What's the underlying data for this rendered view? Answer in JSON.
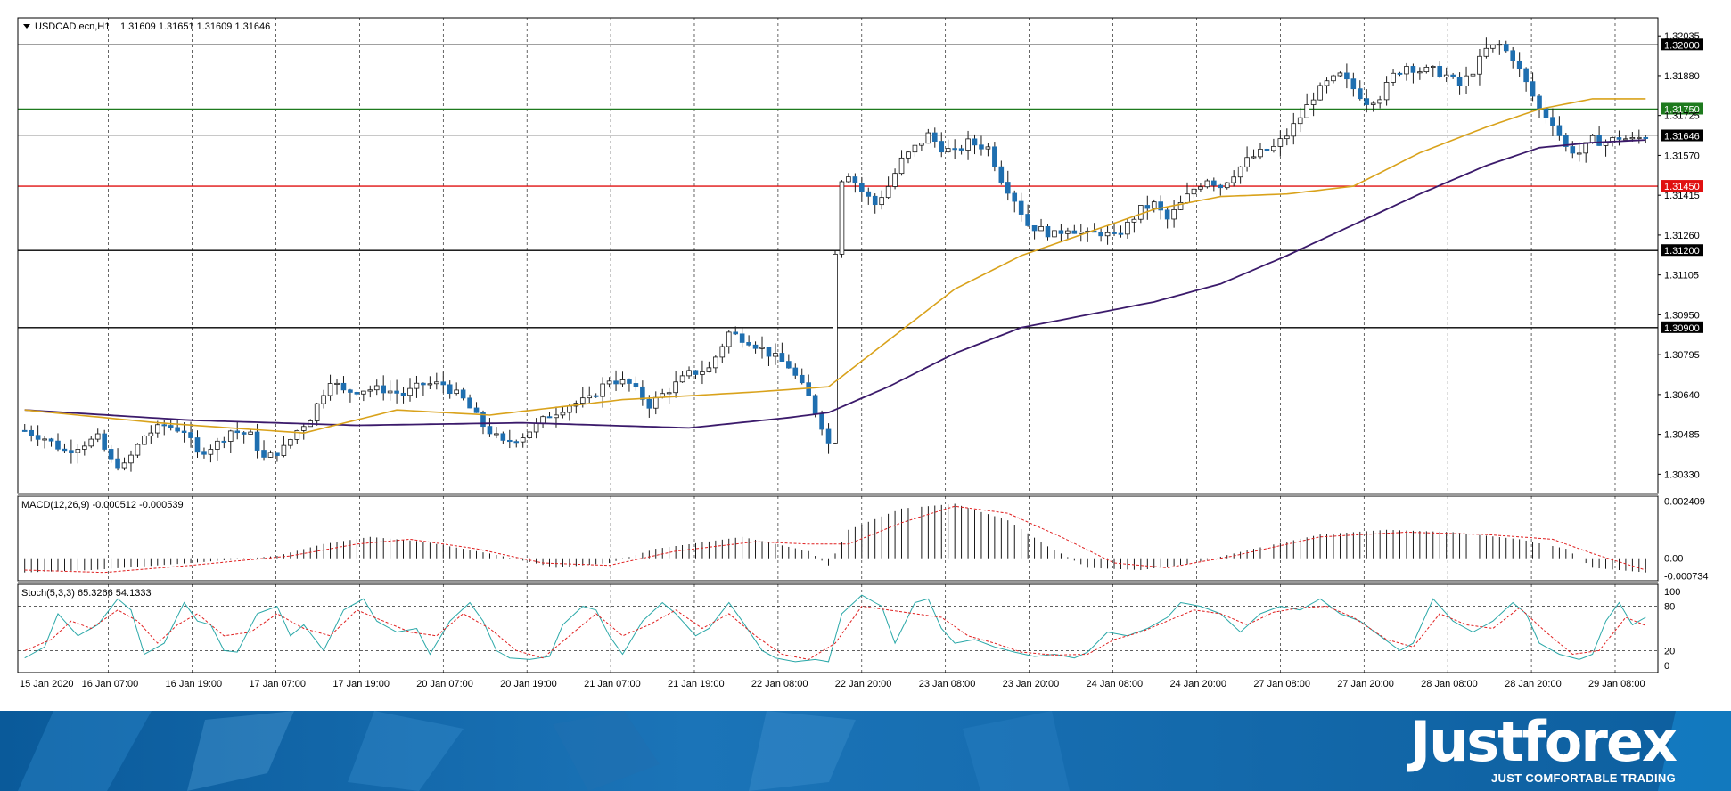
{
  "header": {
    "symbol": "USDCAD.ecn,H1",
    "ohlc": "1.31609 1.31651 1.31609 1.31646"
  },
  "chart_data": {
    "type": "candlestick",
    "ylim": [
      1.30255,
      1.32105
    ],
    "price_ticks": [
      "1.32035",
      "1.31880",
      "1.31725",
      "1.31570",
      "1.31415",
      "1.31260",
      "1.31105",
      "1.30950",
      "1.30795",
      "1.30640",
      "1.30485",
      "1.30330"
    ],
    "horizontal_levels": [
      {
        "label": "1.32000",
        "value": 1.32,
        "color": "#000000",
        "text_color": "#ffffff"
      },
      {
        "label": "1.31750",
        "value": 1.3175,
        "color": "#1e7a1e",
        "text_color": "#ffffff"
      },
      {
        "label": "1.31450",
        "value": 1.3145,
        "color": "#e01010",
        "text_color": "#ffffff"
      },
      {
        "label": "1.31200",
        "value": 1.312,
        "color": "#000000",
        "text_color": "#ffffff"
      },
      {
        "label": "1.30900",
        "value": 1.309,
        "color": "#000000",
        "text_color": "#ffffff"
      }
    ],
    "current_price": {
      "label": "1.31646",
      "value": 1.31646
    },
    "time_labels": [
      "15 Jan 2020",
      "16 Jan 07:00",
      "16 Jan 19:00",
      "17 Jan 07:00",
      "17 Jan 19:00",
      "20 Jan 07:00",
      "20 Jan 19:00",
      "21 Jan 07:00",
      "21 Jan 19:00",
      "22 Jan 08:00",
      "22 Jan 20:00",
      "23 Jan 08:00",
      "23 Jan 20:00",
      "24 Jan 08:00",
      "24 Jan 20:00",
      "27 Jan 08:00",
      "27 Jan 20:00",
      "28 Jan 08:00",
      "28 Jan 20:00",
      "29 Jan 08:00"
    ],
    "bull_color": "#ffffff",
    "bear_color": "#1f6fb0",
    "ma_fast_color": "#d9a21b",
    "ma_slow_color": "#3b1a6b",
    "close_path": [
      [
        0,
        1.305
      ],
      [
        3,
        1.3047
      ],
      [
        6,
        1.3042
      ],
      [
        8,
        1.3044
      ],
      [
        11,
        1.3047
      ],
      [
        13,
        1.3038
      ],
      [
        15,
        1.3036
      ],
      [
        18,
        1.3048
      ],
      [
        21,
        1.3052
      ],
      [
        24,
        1.305
      ],
      [
        26,
        1.3041
      ],
      [
        29,
        1.3045
      ],
      [
        31,
        1.305
      ],
      [
        34,
        1.3048
      ],
      [
        36,
        1.3039
      ],
      [
        39,
        1.3043
      ],
      [
        41,
        1.305
      ],
      [
        43,
        1.3055
      ],
      [
        46,
        1.307
      ],
      [
        48,
        1.3065
      ],
      [
        51,
        1.3066
      ],
      [
        54,
        1.3066
      ],
      [
        57,
        1.3064
      ],
      [
        60,
        1.3068
      ],
      [
        63,
        1.3068
      ],
      [
        66,
        1.3062
      ],
      [
        69,
        1.3052
      ],
      [
        72,
        1.3045
      ],
      [
        75,
        1.3048
      ],
      [
        79,
        1.3056
      ],
      [
        82,
        1.306
      ],
      [
        85,
        1.3062
      ],
      [
        88,
        1.307
      ],
      [
        91,
        1.3068
      ],
      [
        94,
        1.306
      ],
      [
        97,
        1.3066
      ],
      [
        100,
        1.3072
      ],
      [
        103,
        1.3074
      ],
      [
        106,
        1.3088
      ],
      [
        109,
        1.3085
      ],
      [
        112,
        1.308
      ],
      [
        115,
        1.3075
      ],
      [
        118,
        1.3063
      ],
      [
        120,
        1.3052
      ],
      [
        121,
        1.3045
      ],
      [
        122,
        1.312
      ],
      [
        123,
        1.3148
      ],
      [
        124,
        1.315
      ],
      [
        126,
        1.3143
      ],
      [
        128,
        1.3138
      ],
      [
        130,
        1.3145
      ],
      [
        132,
        1.3155
      ],
      [
        134,
        1.316
      ],
      [
        136,
        1.3165
      ],
      [
        138,
        1.316
      ],
      [
        140,
        1.3158
      ],
      [
        142,
        1.3162
      ],
      [
        145,
        1.316
      ],
      [
        147,
        1.3148
      ],
      [
        149,
        1.314
      ],
      [
        151,
        1.313
      ],
      [
        153,
        1.3128
      ],
      [
        155,
        1.3126
      ],
      [
        157,
        1.3129
      ],
      [
        160,
        1.3126
      ],
      [
        162,
        1.3127
      ],
      [
        164,
        1.3125
      ],
      [
        166,
        1.313
      ],
      [
        168,
        1.3136
      ],
      [
        170,
        1.3138
      ],
      [
        172,
        1.3132
      ],
      [
        174,
        1.3138
      ],
      [
        176,
        1.3144
      ],
      [
        178,
        1.3148
      ],
      [
        180,
        1.3145
      ],
      [
        182,
        1.315
      ],
      [
        184,
        1.3155
      ],
      [
        186,
        1.3158
      ],
      [
        188,
        1.316
      ],
      [
        190,
        1.3165
      ],
      [
        192,
        1.3172
      ],
      [
        194,
        1.318
      ],
      [
        196,
        1.3185
      ],
      [
        198,
        1.3188
      ],
      [
        200,
        1.3183
      ],
      [
        202,
        1.3178
      ],
      [
        204,
        1.318
      ],
      [
        206,
        1.3188
      ],
      [
        208,
        1.3192
      ],
      [
        210,
        1.319
      ],
      [
        212,
        1.319
      ],
      [
        214,
        1.3188
      ],
      [
        216,
        1.3184
      ],
      [
        218,
        1.319
      ],
      [
        220,
        1.3198
      ],
      [
        222,
        1.32
      ],
      [
        224,
        1.3195
      ],
      [
        226,
        1.3185
      ],
      [
        228,
        1.3175
      ],
      [
        230,
        1.317
      ],
      [
        232,
        1.316
      ],
      [
        234,
        1.3158
      ],
      [
        236,
        1.3163
      ],
      [
        238,
        1.3162
      ],
      [
        240,
        1.3164
      ],
      [
        242,
        1.3163
      ],
      [
        244,
        1.31646
      ]
    ],
    "ma_fast": [
      [
        0,
        1.3058
      ],
      [
        20,
        1.3053
      ],
      [
        42,
        1.3049
      ],
      [
        56,
        1.3058
      ],
      [
        70,
        1.3056
      ],
      [
        90,
        1.3062
      ],
      [
        110,
        1.3065
      ],
      [
        121,
        1.3067
      ],
      [
        130,
        1.3085
      ],
      [
        140,
        1.3105
      ],
      [
        150,
        1.3118
      ],
      [
        160,
        1.3127
      ],
      [
        170,
        1.3136
      ],
      [
        180,
        1.3141
      ],
      [
        190,
        1.3142
      ],
      [
        200,
        1.3145
      ],
      [
        210,
        1.3158
      ],
      [
        220,
        1.3168
      ],
      [
        228,
        1.3175
      ],
      [
        236,
        1.3179
      ],
      [
        244,
        1.3179
      ]
    ],
    "ma_slow": [
      [
        0,
        1.3058
      ],
      [
        25,
        1.3054
      ],
      [
        50,
        1.3052
      ],
      [
        75,
        1.3053
      ],
      [
        100,
        1.3051
      ],
      [
        115,
        1.3055
      ],
      [
        121,
        1.3057
      ],
      [
        130,
        1.3067
      ],
      [
        140,
        1.308
      ],
      [
        150,
        1.309
      ],
      [
        160,
        1.3095
      ],
      [
        170,
        1.31
      ],
      [
        180,
        1.3107
      ],
      [
        190,
        1.3118
      ],
      [
        200,
        1.313
      ],
      [
        210,
        1.3142
      ],
      [
        220,
        1.3153
      ],
      [
        228,
        1.316
      ],
      [
        236,
        1.3162
      ],
      [
        244,
        1.3163
      ]
    ],
    "macd": {
      "label": "MACD(12,26,9) -0.000512 -0.000539",
      "ticks": [
        "0.002409",
        "0.00",
        "-0.000734"
      ],
      "ylim": [
        -0.00095,
        0.00262
      ],
      "hist": [
        [
          0,
          -0.0006
        ],
        [
          10,
          -0.0005
        ],
        [
          25,
          -0.0002
        ],
        [
          38,
          0.0001
        ],
        [
          45,
          0.0006
        ],
        [
          52,
          0.0009
        ],
        [
          60,
          0.0007
        ],
        [
          70,
          0.0002
        ],
        [
          80,
          -0.0004
        ],
        [
          88,
          -0.0002
        ],
        [
          95,
          0.0004
        ],
        [
          108,
          0.0009
        ],
        [
          118,
          0.0003
        ],
        [
          121,
          -0.0003
        ],
        [
          124,
          0.0012
        ],
        [
          132,
          0.0021
        ],
        [
          140,
          0.0023
        ],
        [
          148,
          0.0016
        ],
        [
          154,
          0.0005
        ],
        [
          160,
          -0.0004
        ],
        [
          168,
          -0.0005
        ],
        [
          176,
          -0.0002
        ],
        [
          185,
          0.0004
        ],
        [
          195,
          0.001
        ],
        [
          205,
          0.0012
        ],
        [
          215,
          0.0011
        ],
        [
          225,
          0.0008
        ],
        [
          232,
          0.0004
        ],
        [
          236,
          -0.0004
        ],
        [
          244,
          -0.0006
        ]
      ],
      "signal": [
        [
          0,
          -0.0005
        ],
        [
          12,
          -0.0006
        ],
        [
          25,
          -0.0003
        ],
        [
          40,
          0.0001
        ],
        [
          50,
          0.0006
        ],
        [
          58,
          0.0008
        ],
        [
          68,
          0.0004
        ],
        [
          78,
          -0.0002
        ],
        [
          88,
          -0.0003
        ],
        [
          98,
          0.0003
        ],
        [
          110,
          0.0007
        ],
        [
          118,
          0.0006
        ],
        [
          124,
          0.0006
        ],
        [
          132,
          0.0015
        ],
        [
          140,
          0.0022
        ],
        [
          148,
          0.0019
        ],
        [
          156,
          0.0009
        ],
        [
          164,
          -0.0002
        ],
        [
          172,
          -0.0004
        ],
        [
          182,
          0.0001
        ],
        [
          195,
          0.0009
        ],
        [
          208,
          0.0011
        ],
        [
          220,
          0.001
        ],
        [
          230,
          0.0008
        ],
        [
          236,
          0.0002
        ],
        [
          244,
          -0.0005
        ]
      ]
    },
    "stoch": {
      "label": "Stoch(5,3,3) 65.3266 54.1333",
      "ticks": [
        "100",
        "80",
        "20",
        "0"
      ],
      "k": [
        [
          0,
          10
        ],
        [
          3,
          25
        ],
        [
          5,
          70
        ],
        [
          8,
          40
        ],
        [
          11,
          55
        ],
        [
          14,
          90
        ],
        [
          16,
          75
        ],
        [
          18,
          15
        ],
        [
          21,
          30
        ],
        [
          24,
          85
        ],
        [
          26,
          60
        ],
        [
          28,
          55
        ],
        [
          30,
          20
        ],
        [
          32,
          18
        ],
        [
          35,
          70
        ],
        [
          38,
          80
        ],
        [
          40,
          40
        ],
        [
          42,
          55
        ],
        [
          45,
          20
        ],
        [
          48,
          75
        ],
        [
          51,
          90
        ],
        [
          53,
          60
        ],
        [
          56,
          45
        ],
        [
          59,
          50
        ],
        [
          61,
          15
        ],
        [
          64,
          60
        ],
        [
          67,
          85
        ],
        [
          69,
          60
        ],
        [
          71,
          20
        ],
        [
          73,
          10
        ],
        [
          76,
          8
        ],
        [
          79,
          12
        ],
        [
          81,
          55
        ],
        [
          84,
          80
        ],
        [
          86,
          75
        ],
        [
          88,
          40
        ],
        [
          90,
          15
        ],
        [
          93,
          60
        ],
        [
          96,
          85
        ],
        [
          98,
          70
        ],
        [
          101,
          40
        ],
        [
          103,
          50
        ],
        [
          106,
          85
        ],
        [
          108,
          60
        ],
        [
          111,
          20
        ],
        [
          113,
          10
        ],
        [
          116,
          5
        ],
        [
          119,
          8
        ],
        [
          121,
          5
        ],
        [
          123,
          70
        ],
        [
          126,
          95
        ],
        [
          129,
          80
        ],
        [
          131,
          30
        ],
        [
          134,
          85
        ],
        [
          136,
          90
        ],
        [
          138,
          50
        ],
        [
          140,
          30
        ],
        [
          143,
          35
        ],
        [
          146,
          25
        ],
        [
          149,
          18
        ],
        [
          152,
          12
        ],
        [
          155,
          15
        ],
        [
          158,
          10
        ],
        [
          160,
          18
        ],
        [
          163,
          45
        ],
        [
          166,
          40
        ],
        [
          169,
          50
        ],
        [
          172,
          65
        ],
        [
          174,
          85
        ],
        [
          177,
          80
        ],
        [
          180,
          70
        ],
        [
          183,
          45
        ],
        [
          186,
          70
        ],
        [
          189,
          80
        ],
        [
          192,
          75
        ],
        [
          195,
          90
        ],
        [
          198,
          70
        ],
        [
          201,
          60
        ],
        [
          204,
          40
        ],
        [
          207,
          20
        ],
        [
          209,
          30
        ],
        [
          212,
          90
        ],
        [
          215,
          60
        ],
        [
          218,
          45
        ],
        [
          221,
          60
        ],
        [
          224,
          85
        ],
        [
          226,
          70
        ],
        [
          228,
          30
        ],
        [
          231,
          15
        ],
        [
          234,
          8
        ],
        [
          236,
          15
        ],
        [
          238,
          60
        ],
        [
          240,
          85
        ],
        [
          242,
          55
        ],
        [
          244,
          65
        ]
      ],
      "d": [
        [
          0,
          20
        ],
        [
          4,
          35
        ],
        [
          7,
          60
        ],
        [
          10,
          50
        ],
        [
          14,
          75
        ],
        [
          17,
          60
        ],
        [
          20,
          30
        ],
        [
          23,
          55
        ],
        [
          26,
          70
        ],
        [
          30,
          40
        ],
        [
          34,
          45
        ],
        [
          38,
          70
        ],
        [
          42,
          50
        ],
        [
          46,
          40
        ],
        [
          50,
          75
        ],
        [
          54,
          60
        ],
        [
          58,
          45
        ],
        [
          62,
          40
        ],
        [
          66,
          70
        ],
        [
          70,
          50
        ],
        [
          74,
          20
        ],
        [
          78,
          10
        ],
        [
          82,
          40
        ],
        [
          86,
          70
        ],
        [
          90,
          40
        ],
        [
          94,
          55
        ],
        [
          98,
          75
        ],
        [
          102,
          50
        ],
        [
          106,
          70
        ],
        [
          110,
          40
        ],
        [
          114,
          15
        ],
        [
          118,
          8
        ],
        [
          122,
          30
        ],
        [
          126,
          80
        ],
        [
          130,
          75
        ],
        [
          134,
          70
        ],
        [
          138,
          65
        ],
        [
          142,
          40
        ],
        [
          146,
          30
        ],
        [
          150,
          18
        ],
        [
          155,
          14
        ],
        [
          160,
          15
        ],
        [
          164,
          35
        ],
        [
          168,
          45
        ],
        [
          172,
          60
        ],
        [
          176,
          75
        ],
        [
          180,
          70
        ],
        [
          184,
          55
        ],
        [
          188,
          72
        ],
        [
          192,
          78
        ],
        [
          196,
          80
        ],
        [
          200,
          65
        ],
        [
          205,
          35
        ],
        [
          209,
          25
        ],
        [
          213,
          70
        ],
        [
          217,
          55
        ],
        [
          221,
          50
        ],
        [
          225,
          78
        ],
        [
          229,
          45
        ],
        [
          233,
          15
        ],
        [
          237,
          20
        ],
        [
          241,
          65
        ],
        [
          244,
          54
        ]
      ]
    }
  },
  "branding": {
    "logo": "Justforex",
    "tagline": "JUST COMFORTABLE TRADING"
  }
}
